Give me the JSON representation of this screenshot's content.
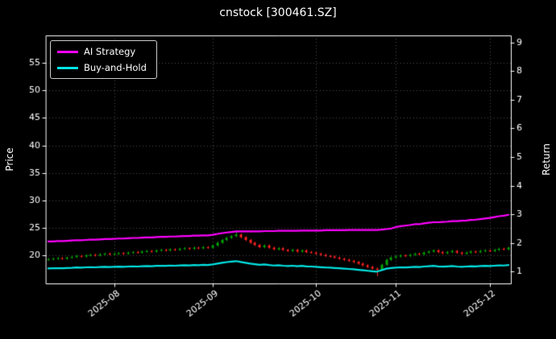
{
  "chart_data": {
    "type": "mixed",
    "title": "cnstock [300461.SZ]",
    "background": "#000000",
    "grid": true,
    "legend_position": "upper-left",
    "price_axis": {
      "label": "Price",
      "ticks": [
        20,
        25,
        30,
        35,
        40,
        45,
        50,
        55
      ],
      "min": 14.9,
      "max": 60.0
    },
    "return_axis": {
      "label": "Return",
      "ticks": [
        1,
        2,
        3,
        4,
        5,
        6,
        7,
        8,
        9
      ],
      "min": 0.58,
      "max": 9.25
    },
    "x_tick_labels": [
      "2025-08",
      "2025-09",
      "2025-10",
      "2025-11",
      "2025-12"
    ],
    "x_dates": [
      "2025-07-14",
      "2025-07-15",
      "2025-07-16",
      "2025-07-17",
      "2025-07-18",
      "2025-07-21",
      "2025-07-22",
      "2025-07-23",
      "2025-07-24",
      "2025-07-25",
      "2025-07-28",
      "2025-07-29",
      "2025-07-30",
      "2025-07-31",
      "2025-08-01",
      "2025-08-04",
      "2025-08-05",
      "2025-08-06",
      "2025-08-07",
      "2025-08-08",
      "2025-08-11",
      "2025-08-12",
      "2025-08-13",
      "2025-08-14",
      "2025-08-15",
      "2025-08-18",
      "2025-08-19",
      "2025-08-20",
      "2025-08-21",
      "2025-08-22",
      "2025-08-25",
      "2025-08-26",
      "2025-08-27",
      "2025-08-28",
      "2025-08-29",
      "2025-09-01",
      "2025-09-02",
      "2025-09-03",
      "2025-09-04",
      "2025-09-05",
      "2025-09-08",
      "2025-09-09",
      "2025-09-10",
      "2025-09-11",
      "2025-09-12",
      "2025-09-15",
      "2025-09-16",
      "2025-09-17",
      "2025-09-18",
      "2025-09-19",
      "2025-09-22",
      "2025-09-23",
      "2025-09-24",
      "2025-09-25",
      "2025-09-26",
      "2025-09-29",
      "2025-09-30",
      "2025-10-09",
      "2025-10-10",
      "2025-10-13",
      "2025-10-14",
      "2025-10-15",
      "2025-10-16",
      "2025-10-17",
      "2025-10-20",
      "2025-10-21",
      "2025-10-22",
      "2025-10-23",
      "2025-10-24",
      "2025-10-27",
      "2025-10-28",
      "2025-10-29",
      "2025-10-30",
      "2025-10-31",
      "2025-11-03",
      "2025-11-04",
      "2025-11-05",
      "2025-11-06",
      "2025-11-07",
      "2025-11-10",
      "2025-11-11",
      "2025-11-12",
      "2025-11-13",
      "2025-11-14",
      "2025-11-17",
      "2025-11-18",
      "2025-11-19",
      "2025-11-20",
      "2025-11-21",
      "2025-11-24",
      "2025-11-25",
      "2025-11-26",
      "2025-11-27",
      "2025-11-28",
      "2025-12-01",
      "2025-12-02",
      "2025-12-03",
      "2025-12-04",
      "2025-12-05"
    ],
    "candlestick": {
      "name": "daily OHLC",
      "up_color": "#00a500",
      "down_color": "#ff2020",
      "open": [
        19.2,
        19.3,
        19.4,
        19.5,
        19.4,
        19.6,
        19.7,
        19.9,
        19.8,
        20.0,
        20.1,
        20.0,
        20.2,
        20.3,
        20.2,
        20.3,
        20.4,
        20.3,
        20.5,
        20.6,
        20.5,
        20.7,
        20.8,
        20.7,
        20.9,
        21.0,
        20.9,
        21.1,
        21.0,
        21.2,
        21.3,
        21.2,
        21.4,
        21.3,
        21.5,
        21.4,
        21.8,
        22.3,
        22.8,
        23.2,
        23.5,
        23.8,
        23.3,
        22.8,
        22.3,
        21.9,
        21.5,
        21.8,
        21.4,
        21.1,
        21.3,
        21.0,
        20.8,
        21.0,
        20.7,
        20.9,
        20.6,
        20.5,
        20.3,
        20.1,
        19.9,
        19.8,
        19.6,
        19.4,
        19.2,
        19.0,
        18.8,
        18.5,
        18.2,
        17.9,
        17.6,
        17.4,
        18.3,
        19.2,
        19.6,
        19.8,
        20.0,
        19.9,
        20.1,
        20.3,
        20.2,
        20.5,
        20.7,
        20.9,
        20.6,
        20.4,
        20.6,
        20.8,
        20.5,
        20.3,
        20.5,
        20.7,
        20.6,
        20.8,
        20.9,
        20.8,
        21.0,
        21.2,
        21.1
      ],
      "high": [
        19.5,
        19.6,
        19.7,
        19.7,
        19.8,
        19.9,
        20.1,
        20.1,
        20.2,
        20.3,
        20.3,
        20.4,
        20.5,
        20.5,
        20.5,
        20.6,
        20.6,
        20.7,
        20.8,
        20.8,
        20.9,
        21.0,
        21.0,
        21.1,
        21.2,
        21.2,
        21.3,
        21.3,
        21.4,
        21.5,
        21.5,
        21.6,
        21.6,
        21.7,
        21.7,
        22.0,
        22.5,
        23.0,
        23.4,
        23.7,
        24.3,
        24.0,
        23.5,
        23.0,
        22.5,
        22.1,
        22.0,
        22.0,
        21.6,
        21.5,
        21.5,
        21.2,
        21.2,
        21.2,
        21.1,
        21.1,
        20.8,
        20.7,
        20.5,
        20.3,
        20.1,
        20.0,
        19.8,
        19.6,
        19.4,
        19.2,
        19.0,
        18.7,
        18.4,
        18.1,
        17.8,
        18.5,
        19.4,
        19.8,
        20.0,
        20.2,
        20.2,
        20.3,
        20.5,
        20.5,
        20.7,
        20.9,
        21.1,
        21.1,
        20.8,
        20.8,
        21.0,
        21.0,
        20.7,
        20.7,
        20.9,
        20.9,
        21.0,
        21.1,
        21.1,
        21.2,
        21.4,
        21.4,
        21.6
      ],
      "low": [
        19.0,
        19.1,
        19.2,
        19.2,
        19.2,
        19.4,
        19.5,
        19.6,
        19.6,
        19.8,
        19.8,
        19.8,
        20.0,
        20.0,
        20.0,
        20.1,
        20.1,
        20.1,
        20.3,
        20.3,
        20.3,
        20.5,
        20.5,
        20.5,
        20.7,
        20.7,
        20.7,
        20.8,
        20.8,
        21.0,
        21.0,
        21.0,
        21.1,
        21.1,
        21.2,
        21.2,
        21.6,
        22.1,
        22.6,
        23.0,
        23.3,
        23.1,
        22.6,
        22.1,
        21.7,
        21.3,
        21.3,
        21.2,
        20.9,
        20.9,
        20.8,
        20.6,
        20.6,
        20.5,
        20.5,
        20.4,
        20.3,
        20.1,
        19.9,
        19.7,
        19.6,
        19.4,
        19.2,
        19.0,
        18.8,
        18.6,
        18.3,
        18.0,
        17.7,
        17.4,
        16.2,
        17.2,
        18.1,
        19.0,
        19.4,
        19.6,
        19.7,
        19.7,
        19.9,
        20.0,
        20.0,
        20.3,
        20.5,
        20.4,
        20.2,
        20.2,
        20.4,
        20.3,
        20.1,
        20.1,
        20.3,
        20.4,
        20.4,
        20.6,
        20.6,
        20.6,
        20.8,
        20.9,
        20.9
      ],
      "close": [
        19.3,
        19.4,
        19.5,
        19.4,
        19.6,
        19.7,
        19.9,
        19.8,
        20.0,
        20.1,
        20.0,
        20.2,
        20.3,
        20.2,
        20.3,
        20.4,
        20.3,
        20.5,
        20.6,
        20.5,
        20.7,
        20.8,
        20.7,
        20.9,
        21.0,
        20.9,
        21.1,
        21.0,
        21.2,
        21.3,
        21.2,
        21.4,
        21.3,
        21.5,
        21.4,
        21.8,
        22.3,
        22.8,
        23.2,
        23.5,
        23.8,
        23.3,
        22.8,
        22.3,
        21.9,
        21.5,
        21.8,
        21.4,
        21.1,
        21.3,
        21.0,
        20.8,
        21.0,
        20.7,
        20.9,
        20.6,
        20.5,
        20.3,
        20.1,
        19.9,
        19.8,
        19.6,
        19.4,
        19.2,
        19.0,
        18.8,
        18.5,
        18.2,
        17.9,
        17.6,
        17.4,
        18.3,
        19.2,
        19.6,
        19.8,
        20.0,
        19.9,
        20.1,
        20.3,
        20.2,
        20.5,
        20.7,
        20.9,
        20.6,
        20.4,
        20.6,
        20.8,
        20.5,
        20.3,
        20.5,
        20.7,
        20.6,
        20.8,
        20.9,
        20.8,
        21.0,
        21.2,
        21.1,
        21.4
      ]
    },
    "series": [
      {
        "name": "AI Strategy",
        "color": "#ff00ff",
        "axis": "return",
        "values": [
          2.05,
          2.05,
          2.06,
          2.06,
          2.07,
          2.08,
          2.09,
          2.09,
          2.1,
          2.11,
          2.11,
          2.12,
          2.13,
          2.13,
          2.14,
          2.15,
          2.15,
          2.16,
          2.17,
          2.17,
          2.18,
          2.19,
          2.19,
          2.2,
          2.21,
          2.21,
          2.22,
          2.22,
          2.23,
          2.24,
          2.24,
          2.25,
          2.25,
          2.26,
          2.26,
          2.28,
          2.31,
          2.34,
          2.36,
          2.38,
          2.4,
          2.4,
          2.4,
          2.4,
          2.4,
          2.4,
          2.41,
          2.41,
          2.41,
          2.42,
          2.42,
          2.42,
          2.42,
          2.42,
          2.43,
          2.43,
          2.43,
          2.43,
          2.43,
          2.44,
          2.44,
          2.44,
          2.44,
          2.44,
          2.45,
          2.45,
          2.45,
          2.45,
          2.45,
          2.45,
          2.45,
          2.46,
          2.48,
          2.5,
          2.55,
          2.58,
          2.6,
          2.62,
          2.65,
          2.65,
          2.68,
          2.7,
          2.72,
          2.72,
          2.73,
          2.74,
          2.76,
          2.76,
          2.77,
          2.78,
          2.8,
          2.81,
          2.83,
          2.85,
          2.87,
          2.9,
          2.93,
          2.95,
          2.98
        ]
      },
      {
        "name": "Buy-and-Hold",
        "color": "#00e5e5",
        "axis": "return",
        "values": [
          1.103,
          1.109,
          1.114,
          1.109,
          1.12,
          1.126,
          1.137,
          1.131,
          1.143,
          1.149,
          1.143,
          1.154,
          1.16,
          1.154,
          1.16,
          1.166,
          1.16,
          1.171,
          1.177,
          1.171,
          1.183,
          1.189,
          1.183,
          1.194,
          1.2,
          1.194,
          1.206,
          1.2,
          1.211,
          1.217,
          1.211,
          1.223,
          1.217,
          1.229,
          1.223,
          1.246,
          1.274,
          1.303,
          1.326,
          1.343,
          1.36,
          1.331,
          1.303,
          1.274,
          1.251,
          1.229,
          1.246,
          1.223,
          1.206,
          1.217,
          1.2,
          1.189,
          1.2,
          1.183,
          1.194,
          1.177,
          1.171,
          1.16,
          1.149,
          1.137,
          1.131,
          1.12,
          1.109,
          1.097,
          1.086,
          1.074,
          1.057,
          1.04,
          1.023,
          1.006,
          0.994,
          1.046,
          1.097,
          1.12,
          1.131,
          1.143,
          1.137,
          1.149,
          1.16,
          1.154,
          1.171,
          1.183,
          1.194,
          1.177,
          1.166,
          1.177,
          1.189,
          1.171,
          1.16,
          1.171,
          1.183,
          1.177,
          1.189,
          1.194,
          1.189,
          1.2,
          1.211,
          1.206,
          1.223
        ]
      }
    ]
  }
}
